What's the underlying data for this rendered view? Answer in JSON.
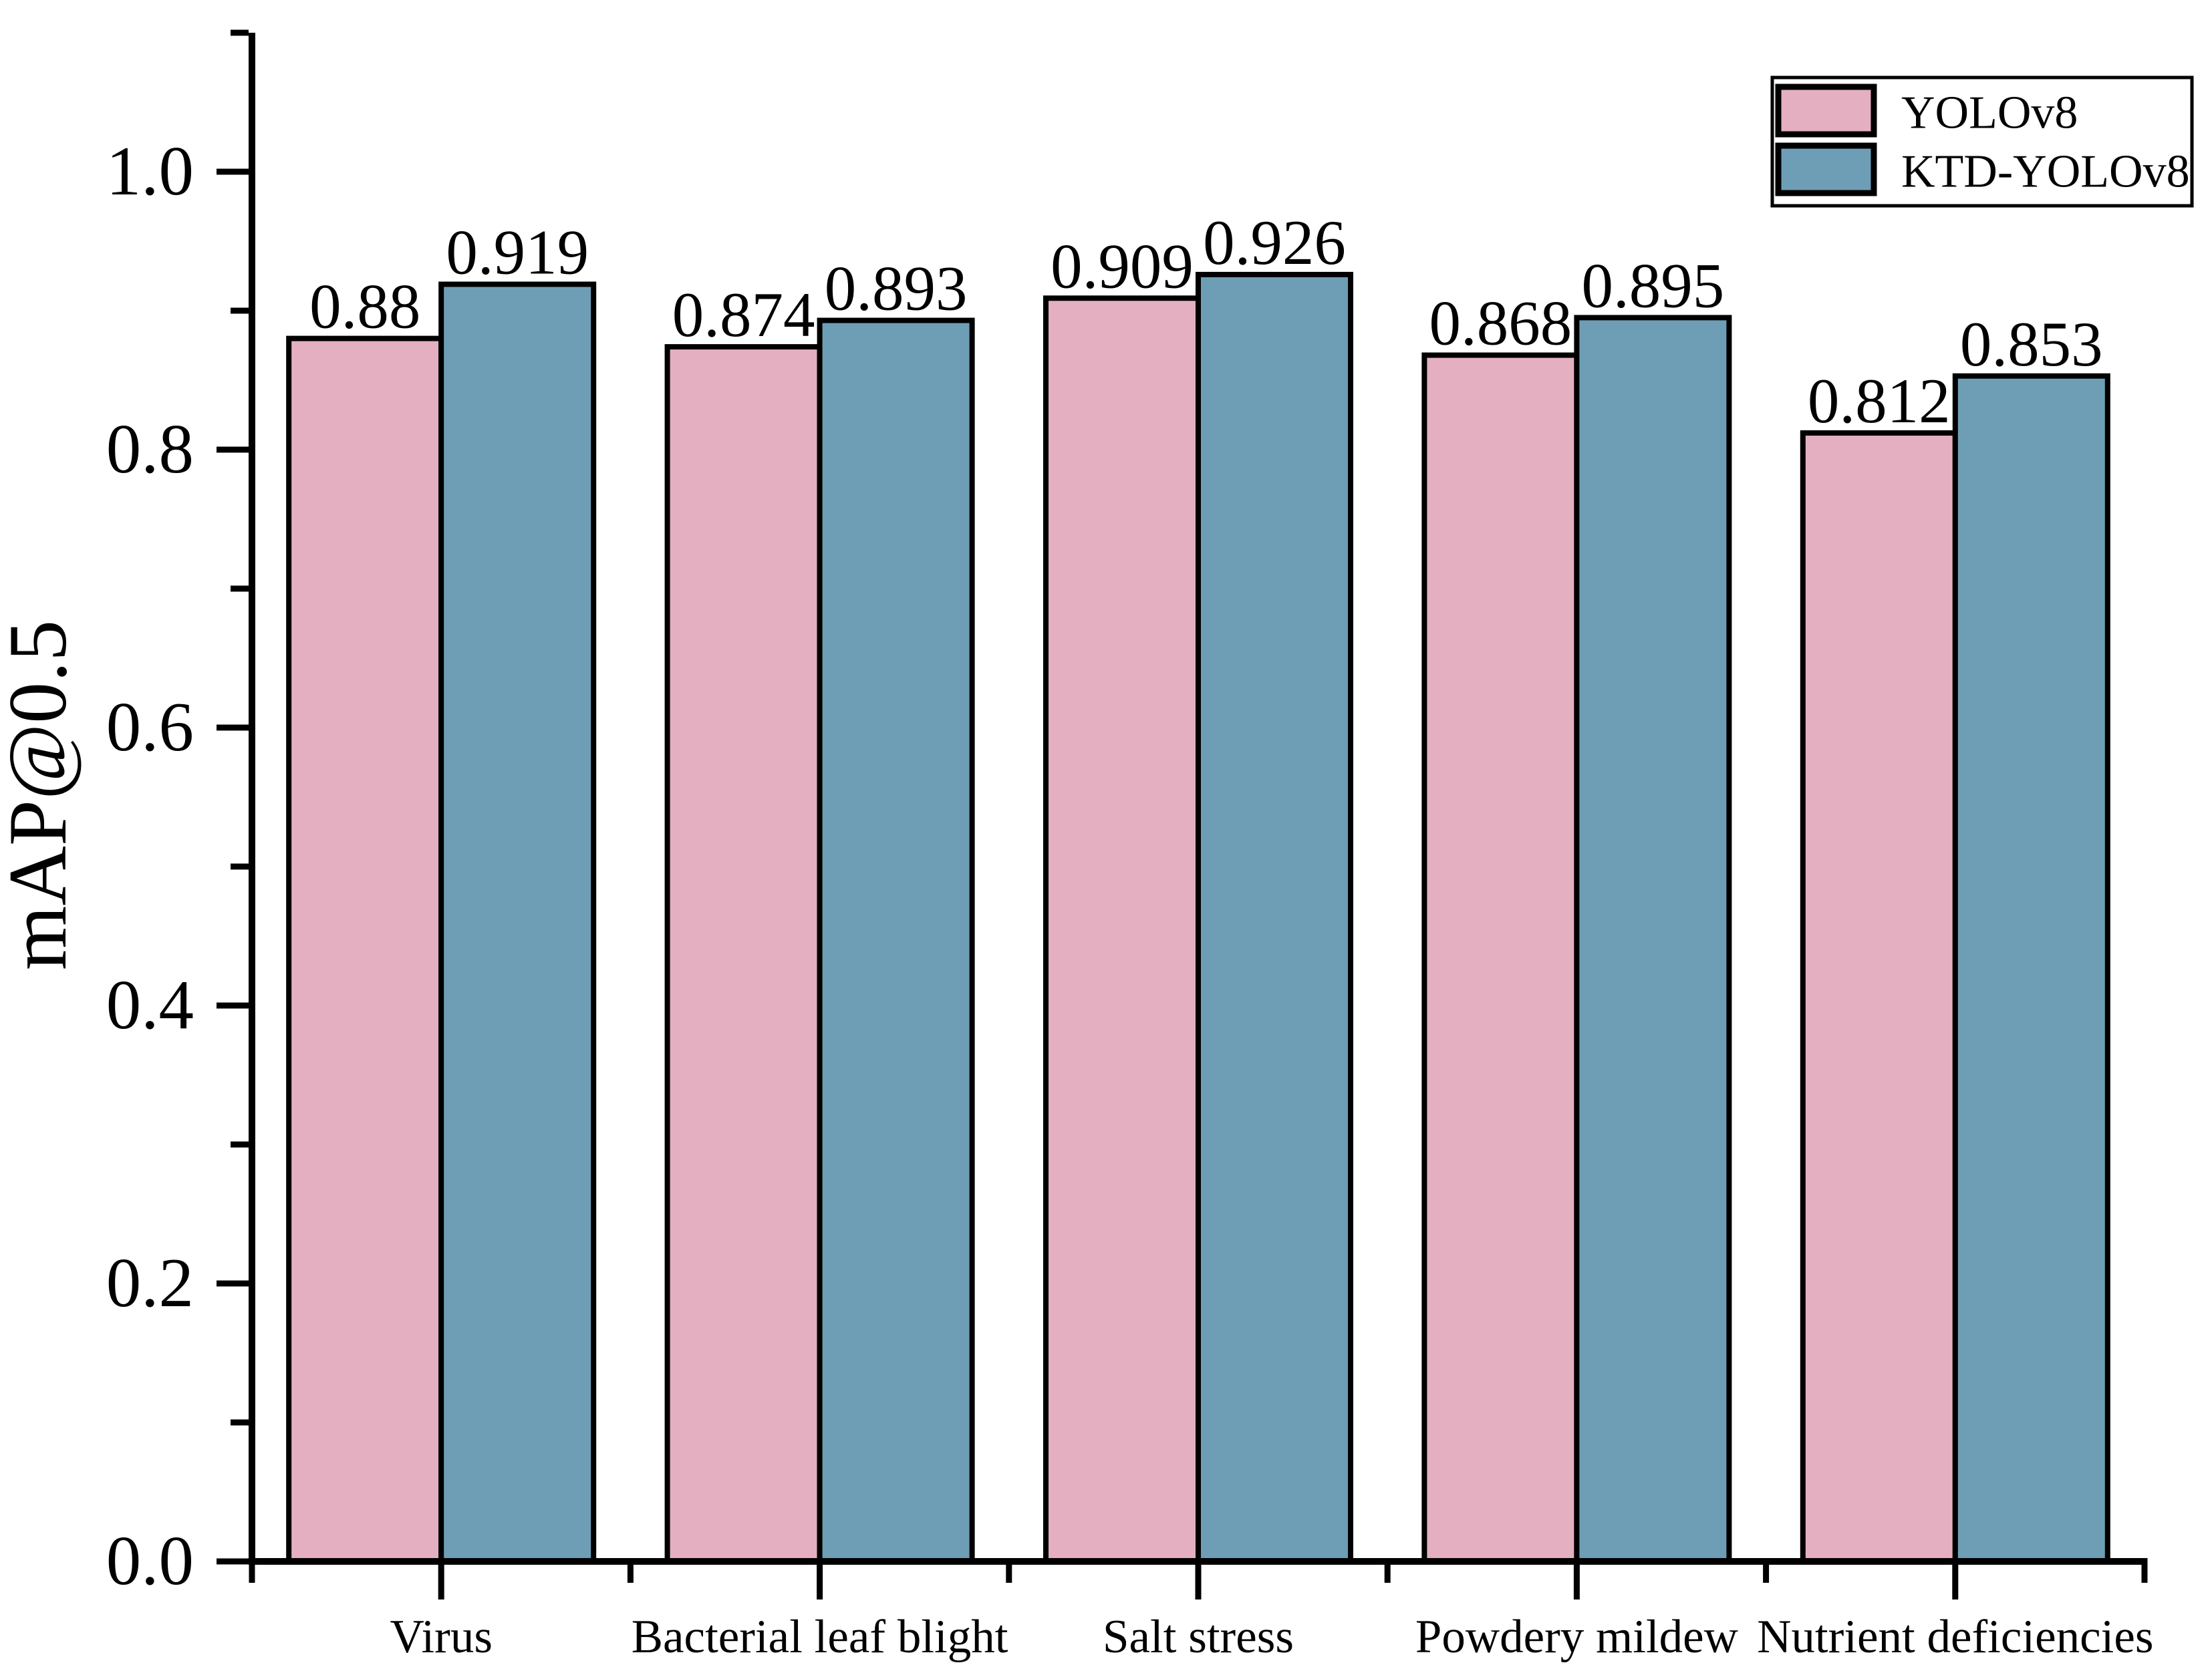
{
  "chart_data": {
    "type": "bar",
    "title": "",
    "xlabel": "",
    "ylabel": "mAP@0.5",
    "categories": [
      "Virus",
      "Bacterial leaf blight",
      "Salt stress",
      "Powdery mildew",
      "Nutrient deficiencies"
    ],
    "series": [
      {
        "name": "YOLOv8",
        "color": "#E4B0C1",
        "values": [
          0.88,
          0.874,
          0.909,
          0.868,
          0.812
        ],
        "value_labels": [
          "0.88",
          "0.874",
          "0.909",
          "0.868",
          "0.812"
        ]
      },
      {
        "name": "KTD-YOLOv8",
        "color": "#6E9EB6",
        "values": [
          0.919,
          0.893,
          0.926,
          0.895,
          0.853
        ],
        "value_labels": [
          "0.919",
          "0.893",
          "0.926",
          "0.895",
          "0.853"
        ]
      }
    ],
    "ylim": [
      0,
      1.1
    ],
    "yticks": [
      0.0,
      0.2,
      0.4,
      0.6,
      0.8,
      1.0
    ],
    "ytick_labels": [
      "0.0",
      "0.2",
      "0.4",
      "0.6",
      "0.8",
      "1.0"
    ],
    "yminor_ticks": [
      0.1,
      0.3,
      0.5,
      0.7,
      0.9,
      1.1
    ],
    "grid": false,
    "bar_edge_color": "#000000",
    "axis_color": "#000000",
    "text_color": "#000000",
    "background_color": "#FFFFFF",
    "legend": {
      "position": "top-right",
      "entries": [
        "YOLOv8",
        "KTD-YOLOv8"
      ]
    }
  }
}
